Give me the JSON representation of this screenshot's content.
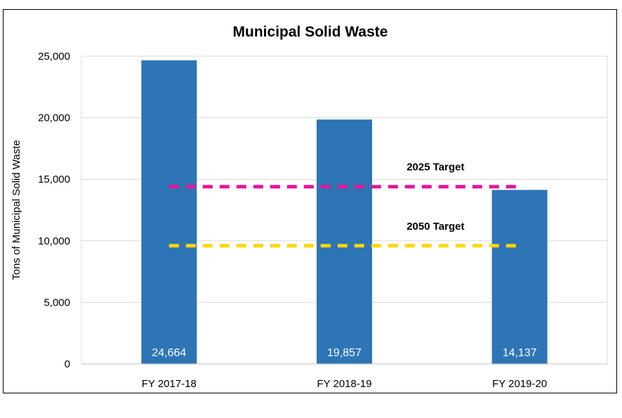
{
  "chart_data": {
    "type": "bar",
    "title": "Municipal Solid Waste",
    "ylabel": "Tons of Municipal Solid Waste",
    "xlabel": "",
    "categories": [
      "FY 2017-18",
      "FY 2018-19",
      "FY 2019-20"
    ],
    "values": [
      24664,
      19857,
      14137
    ],
    "value_labels": [
      "24,664",
      "19,857",
      "14,137"
    ],
    "ylim": [
      0,
      25000
    ],
    "yticks": [
      0,
      5000,
      10000,
      15000,
      20000,
      25000
    ],
    "ytick_labels": [
      "0",
      "5,000",
      "10,000",
      "15,000",
      "20,000",
      "25,000"
    ],
    "grid": true,
    "legend": "none",
    "bar_color": "#2E75B6",
    "targets": [
      {
        "label": "2025 Target",
        "value": 14400,
        "color": "#E8139A"
      },
      {
        "label": "2050 Target",
        "value": 9600,
        "color": "#FFD700"
      }
    ]
  }
}
